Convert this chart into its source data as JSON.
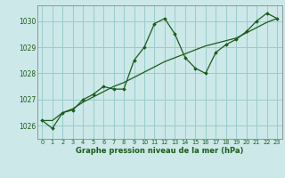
{
  "line1_x": [
    0,
    1,
    2,
    3,
    4,
    5,
    6,
    7,
    8,
    9,
    10,
    11,
    12,
    13,
    14,
    15,
    16,
    17,
    18,
    19,
    20,
    21,
    22,
    23
  ],
  "line1_y": [
    1026.2,
    1025.9,
    1026.5,
    1026.6,
    1027.0,
    1027.2,
    1027.5,
    1027.4,
    1027.4,
    1028.5,
    1029.0,
    1029.9,
    1030.1,
    1029.5,
    1028.6,
    1028.2,
    1028.0,
    1028.8,
    1029.1,
    1029.3,
    1029.6,
    1030.0,
    1030.3,
    1030.1
  ],
  "line2_x": [
    0,
    1,
    2,
    3,
    4,
    5,
    6,
    7,
    8,
    9,
    10,
    11,
    12,
    13,
    14,
    15,
    16,
    17,
    18,
    19,
    20,
    21,
    22,
    23
  ],
  "line2_y": [
    1026.2,
    1026.2,
    1026.5,
    1026.65,
    1026.9,
    1027.1,
    1027.3,
    1027.5,
    1027.65,
    1027.85,
    1028.05,
    1028.25,
    1028.45,
    1028.6,
    1028.75,
    1028.9,
    1029.05,
    1029.15,
    1029.25,
    1029.35,
    1029.55,
    1029.75,
    1029.95,
    1030.1
  ],
  "bg_color": "#cce8e8",
  "line_color": "#1a5c1a",
  "grid_color": "#99cccc",
  "xlabel": "Graphe pression niveau de la mer (hPa)",
  "ylim": [
    1025.5,
    1030.6
  ],
  "xlim": [
    -0.5,
    23.5
  ],
  "yticks": [
    1026,
    1027,
    1028,
    1029,
    1030
  ],
  "xticks": [
    0,
    1,
    2,
    3,
    4,
    5,
    6,
    7,
    8,
    9,
    10,
    11,
    12,
    13,
    14,
    15,
    16,
    17,
    18,
    19,
    20,
    21,
    22,
    23
  ]
}
